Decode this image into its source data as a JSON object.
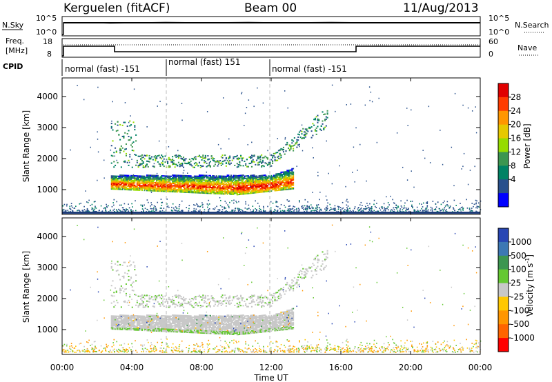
{
  "header": {
    "station": "Kerguelen (fitACF)",
    "beam": "Beam 00",
    "date": "11/Aug/2013"
  },
  "noise_panel": {
    "left_label": "N.Sky",
    "right_label": "N.Search",
    "left_ticks": [
      "10^5",
      "10^0"
    ],
    "right_ticks": [
      "10^5",
      "10^0"
    ]
  },
  "freq_panel": {
    "left_label_1": "Freq.",
    "left_label_2": "[MHz]",
    "right_label": "Nave",
    "left_ticks": [
      "18",
      "8"
    ],
    "right_ticks": [
      "60",
      "0"
    ]
  },
  "cpid": {
    "label": "CPID",
    "segments": [
      {
        "start_h": 0,
        "end_h": 6,
        "name": "normal (fast) -151"
      },
      {
        "start_h": 6,
        "end_h": 12,
        "name": "normal (fast) 151"
      },
      {
        "start_h": 12,
        "end_h": 24,
        "name": "normal (fast) -151"
      }
    ]
  },
  "chart_data": [
    {
      "type": "heatmap",
      "parameter": "Power",
      "ylabel": "Slant Range [km]",
      "xlabel": "Time UT",
      "colorbar_label": "Power [dB]",
      "x_ticks": [
        "00:00",
        "04:00",
        "08:00",
        "12:00",
        "16:00",
        "20:00",
        "00:00"
      ],
      "y_ticks": [
        1000,
        2000,
        3000,
        4000
      ],
      "ylim": [
        200,
        4600
      ],
      "xlim_hours": [
        0,
        24
      ],
      "colorbar_ticks": [
        "28",
        "24",
        "20",
        "16",
        "12",
        "8",
        "4"
      ],
      "colorbar_colors": [
        "#e00000",
        "#ff3c00",
        "#ff9600",
        "#e6c800",
        "#96dc00",
        "#3c9650",
        "#008264",
        "#28508c",
        "#0000ff"
      ],
      "features": [
        {
          "desc": "main echo band",
          "t_start": 2.8,
          "t_end": 13.2,
          "range_km_low": 750,
          "range_km_high": 1450,
          "peak_db": 28
        },
        {
          "desc": "upper band",
          "t_start": 3.2,
          "t_end": 15.0,
          "range_km_low": 1500,
          "range_km_high": 3500,
          "peak_db": 8
        }
      ]
    },
    {
      "type": "heatmap",
      "parameter": "Velocity",
      "ylabel": "Slant Range [km]",
      "xlabel": "Time UT",
      "colorbar_label": "Velocity [m s^-1]",
      "x_ticks": [
        "00:00",
        "04:00",
        "08:00",
        "12:00",
        "16:00",
        "20:00",
        "00:00"
      ],
      "y_ticks": [
        1000,
        2000,
        3000,
        4000
      ],
      "ylim": [
        200,
        4600
      ],
      "xlim_hours": [
        0,
        24
      ],
      "colorbar_ticks": [
        "1000",
        "500",
        "100",
        "25",
        "-25",
        "-100",
        "-500",
        "-1000"
      ],
      "colorbar_colors": [
        "#2846b4",
        "#3c78b4",
        "#3c9650",
        "#64c832",
        "#c8c8c8",
        "#c8c8c8",
        "#ffc800",
        "#ff9600",
        "#ff6400",
        "#ff0000"
      ],
      "ground_scatter_color": "#c0c0bc"
    }
  ]
}
